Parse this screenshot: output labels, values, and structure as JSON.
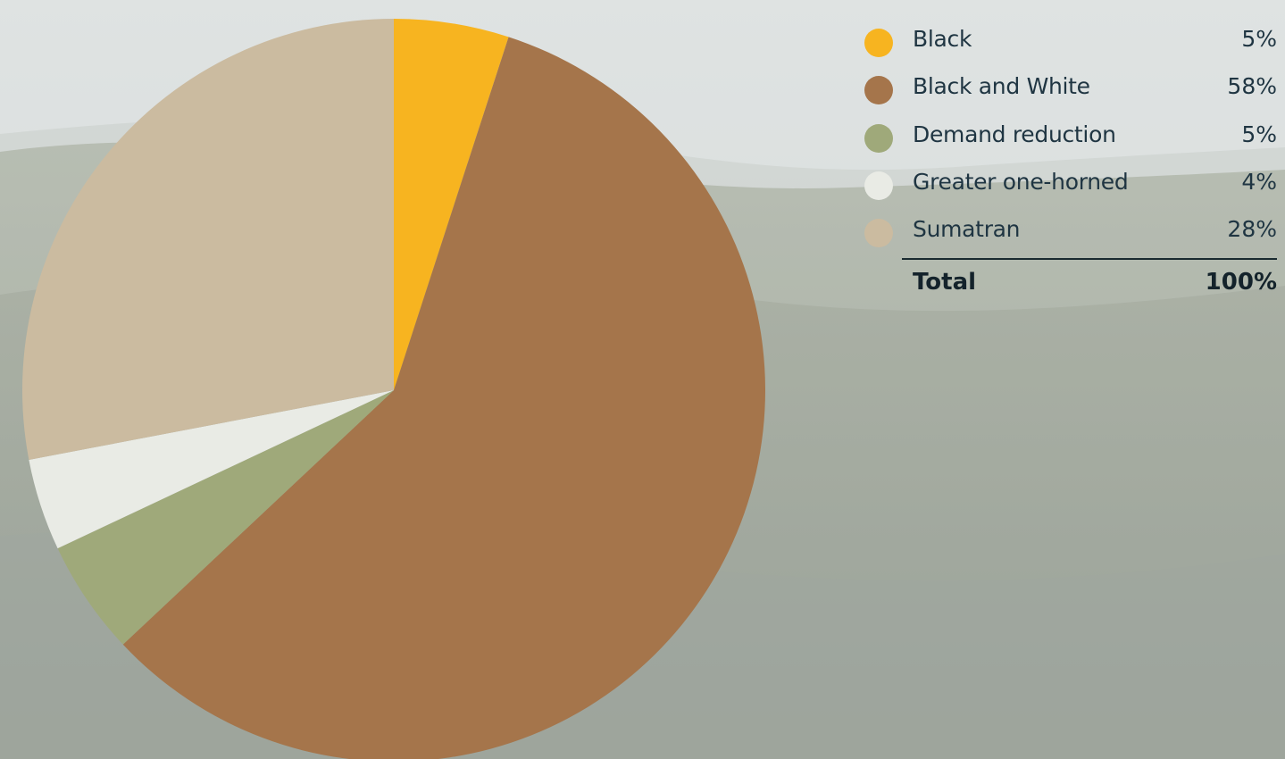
{
  "chart_data": {
    "type": "pie",
    "slices": [
      {
        "label": "Black",
        "value": 5,
        "display": "5%",
        "color": "#f7b420"
      },
      {
        "label": "Black and White",
        "value": 58,
        "display": "58%",
        "color": "#a5754b"
      },
      {
        "label": "Demand reduction",
        "value": 5,
        "display": "5%",
        "color": "#9fa97a"
      },
      {
        "label": "Greater one-horned",
        "value": 4,
        "display": "4%",
        "color": "#e9ebe5"
      },
      {
        "label": "Sumatran",
        "value": 28,
        "display": "28%",
        "color": "#cbbba0"
      }
    ],
    "total_label": "Total",
    "total_value": "100%",
    "legend_position": "top-right"
  }
}
